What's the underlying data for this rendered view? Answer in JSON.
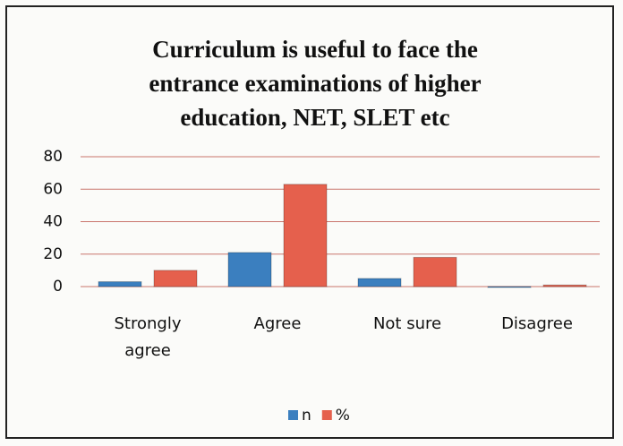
{
  "chart_data": {
    "type": "bar",
    "title": "Curriculum is useful to face the entrance examinations of higher education, NET, SLET etc",
    "categories": [
      "Strongly agree",
      "Agree",
      "Not sure",
      "Disagree"
    ],
    "series": [
      {
        "name": "n",
        "color": "#3b7fbf",
        "values": [
          3,
          21,
          5,
          0
        ]
      },
      {
        "name": "%",
        "color": "#e5604d",
        "values": [
          10,
          63,
          18,
          1
        ]
      }
    ],
    "ylim": [
      0,
      80
    ],
    "yticks": [
      0,
      20,
      40,
      60,
      80
    ],
    "grid": true,
    "legend": "bottom"
  }
}
